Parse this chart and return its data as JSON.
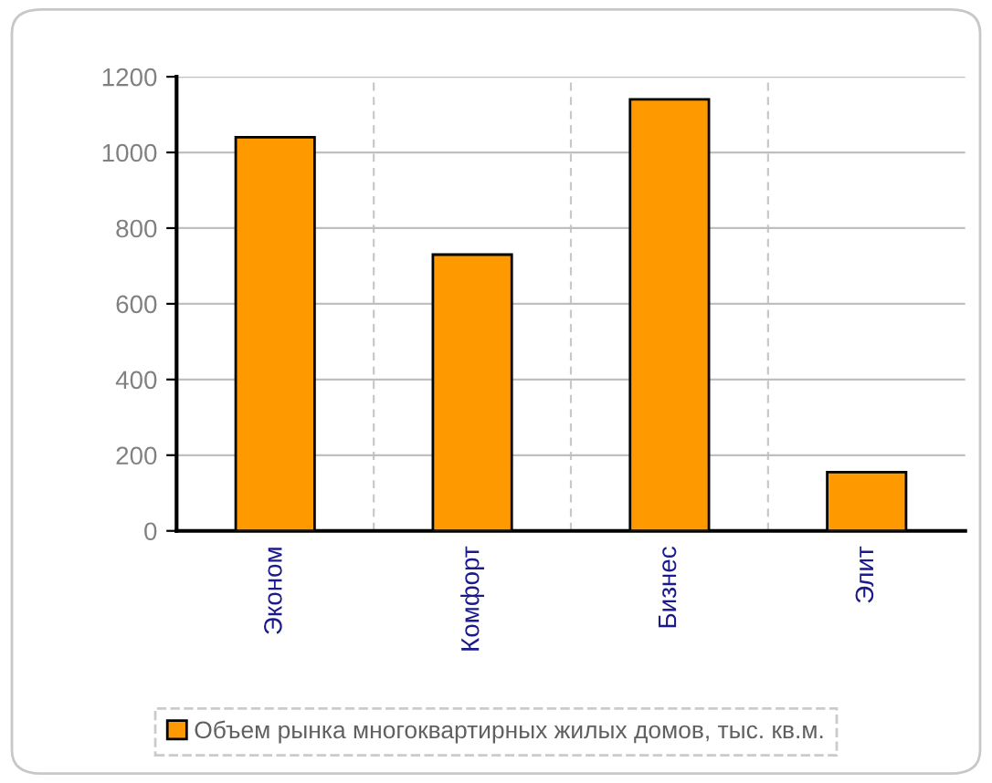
{
  "chart_data": {
    "type": "bar",
    "categories": [
      "Эконом",
      "Комфорт",
      "Бизнес",
      "Элит"
    ],
    "series": [
      {
        "name": "Объем рынка многоквартирных жилых домов, тыс. кв.м.",
        "color": "#ff9900",
        "values": [
          1040,
          730,
          1140,
          155
        ]
      }
    ],
    "ylim": [
      0,
      1200
    ],
    "yticks": [
      0,
      200,
      400,
      600,
      800,
      1000,
      1200
    ],
    "grid": true,
    "legend": "bottom"
  }
}
